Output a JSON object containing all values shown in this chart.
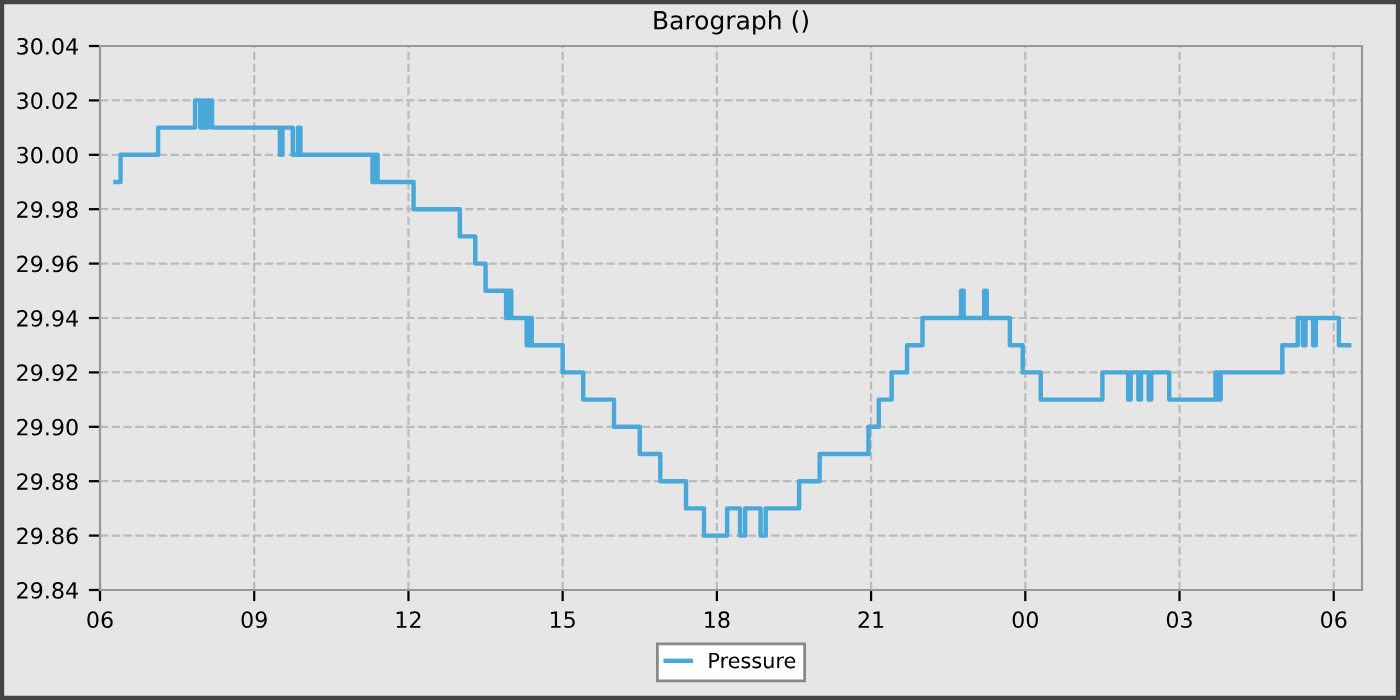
{
  "chart_data": {
    "type": "step",
    "title": "Barograph ()",
    "series": [
      {
        "name": "Pressure",
        "color": "#4aa8d8",
        "x": [
          6.3,
          6.4,
          7.13,
          7.85,
          7.95,
          8.0,
          8.05,
          8.1,
          8.18,
          9.5,
          9.55,
          9.65,
          9.75,
          9.85,
          9.9,
          11.3,
          11.35,
          11.4,
          12.1,
          13.0,
          13.3,
          13.5,
          13.9,
          13.95,
          14.0,
          14.3,
          14.35,
          14.4,
          15.0,
          15.4,
          16.0,
          16.5,
          16.9,
          17.4,
          17.75,
          18.2,
          18.45,
          18.55,
          18.85,
          18.95,
          19.6,
          20.0,
          20.95,
          21.15,
          21.4,
          21.7,
          22.0,
          22.75,
          22.8,
          23.2,
          23.25,
          23.7,
          23.95,
          24.3,
          25.5,
          26.0,
          26.05,
          26.2,
          26.25,
          26.4,
          26.45,
          26.8,
          27.7,
          27.75,
          27.8,
          29.0,
          29.3,
          29.4,
          29.45,
          29.6,
          29.65,
          30.1,
          30.3
        ],
        "values": [
          29.99,
          30.0,
          30.01,
          30.02,
          30.01,
          30.02,
          30.01,
          30.02,
          30.01,
          30.0,
          30.01,
          30.01,
          30.0,
          30.01,
          30.0,
          29.99,
          30.0,
          29.99,
          29.98,
          29.97,
          29.96,
          29.95,
          29.94,
          29.95,
          29.94,
          29.93,
          29.94,
          29.93,
          29.92,
          29.91,
          29.9,
          29.89,
          29.88,
          29.87,
          29.86,
          29.87,
          29.86,
          29.87,
          29.86,
          29.87,
          29.88,
          29.89,
          29.9,
          29.91,
          29.92,
          29.93,
          29.94,
          29.95,
          29.94,
          29.95,
          29.94,
          29.93,
          29.92,
          29.91,
          29.92,
          29.91,
          29.92,
          29.91,
          29.92,
          29.91,
          29.92,
          29.91,
          29.92,
          29.91,
          29.92,
          29.93,
          29.94,
          29.93,
          29.94,
          29.93,
          29.94,
          29.93,
          29.93
        ]
      }
    ],
    "xlim": [
      6,
      30.55
    ],
    "xticks": [
      {
        "value": 6,
        "label": "06"
      },
      {
        "value": 9,
        "label": "09"
      },
      {
        "value": 12,
        "label": "12"
      },
      {
        "value": 15,
        "label": "15"
      },
      {
        "value": 18,
        "label": "18"
      },
      {
        "value": 21,
        "label": "21"
      },
      {
        "value": 24,
        "label": "00"
      },
      {
        "value": 27,
        "label": "03"
      },
      {
        "value": 30,
        "label": "06"
      }
    ],
    "ylim": [
      29.84,
      30.04
    ],
    "yticks": [
      {
        "value": 29.84,
        "label": "29.84"
      },
      {
        "value": 29.86,
        "label": "29.86"
      },
      {
        "value": 29.88,
        "label": "29.88"
      },
      {
        "value": 29.9,
        "label": "29.90"
      },
      {
        "value": 29.92,
        "label": "29.92"
      },
      {
        "value": 29.94,
        "label": "29.94"
      },
      {
        "value": 29.96,
        "label": "29.96"
      },
      {
        "value": 29.98,
        "label": "29.98"
      },
      {
        "value": 30.0,
        "label": "30.00"
      },
      {
        "value": 30.02,
        "label": "30.02"
      },
      {
        "value": 30.04,
        "label": "30.04"
      }
    ],
    "grid": true,
    "legend": "bottom"
  }
}
